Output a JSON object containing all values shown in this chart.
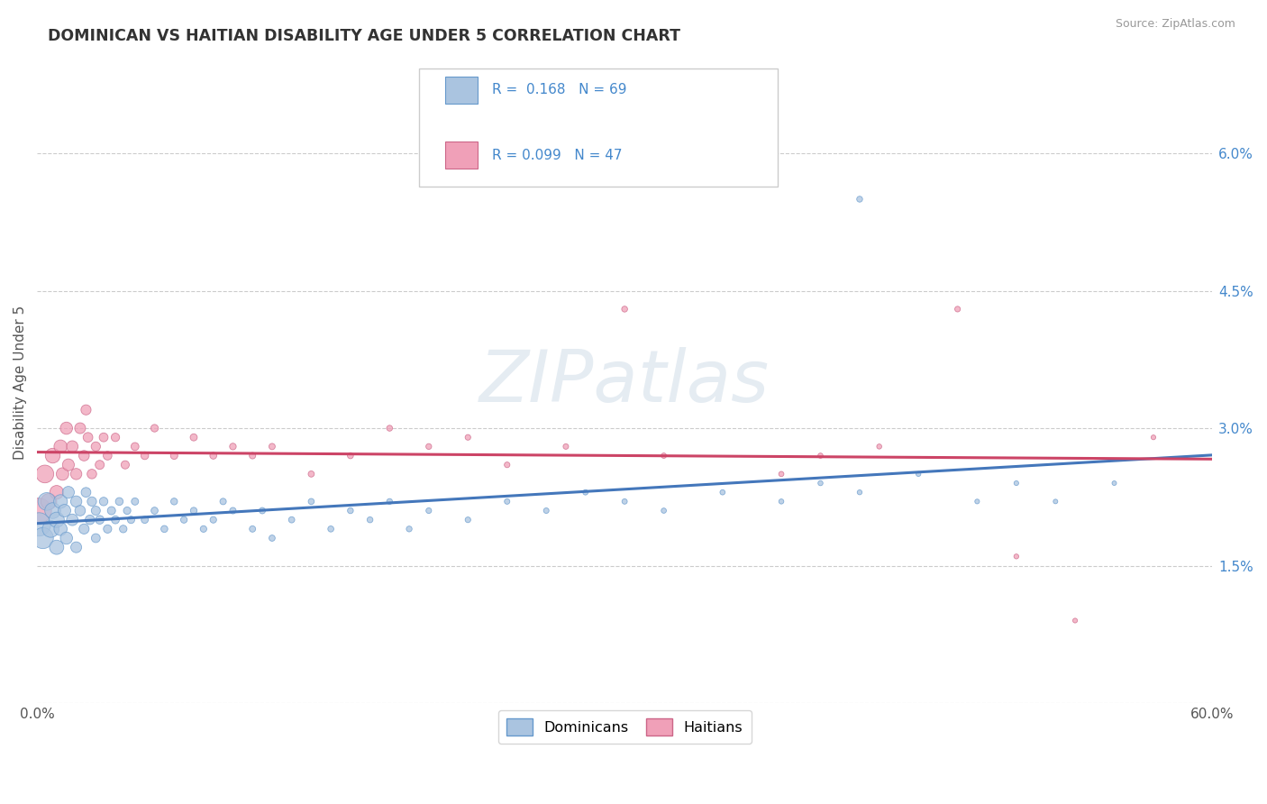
{
  "title": "DOMINICAN VS HAITIAN DISABILITY AGE UNDER 5 CORRELATION CHART",
  "source": "Source: ZipAtlas.com",
  "ylabel": "Disability Age Under 5",
  "xlim": [
    0.0,
    0.6
  ],
  "ylim": [
    0.0,
    0.07
  ],
  "xticklabels": [
    "0.0%",
    "",
    "",
    "",
    "",
    "",
    "60.0%"
  ],
  "yticks": [
    0.0,
    0.015,
    0.03,
    0.045,
    0.06
  ],
  "yticklabels": [
    "",
    "1.5%",
    "3.0%",
    "4.5%",
    "6.0%"
  ],
  "dominican_fill": "#aac4e0",
  "dominican_edge": "#6699cc",
  "haitian_fill": "#f0a0b8",
  "haitian_edge": "#cc6688",
  "dom_line_color": "#4477bb",
  "hai_line_color": "#cc4466",
  "grid_color": "#cccccc",
  "title_color": "#333333",
  "ytick_color": "#4488cc",
  "watermark_color": "#d0dde8",
  "legend_text_color": "#4488cc",
  "source_color": "#999999",
  "dom_R": "R =  0.168",
  "dom_N": "N = 69",
  "hai_R": "R = 0.099",
  "hai_N": "N = 47",
  "dom_label": "Dominicans",
  "hai_label": "Haitians",
  "dom_points": [
    [
      0.001,
      0.0195,
      350
    ],
    [
      0.003,
      0.018,
      280
    ],
    [
      0.005,
      0.022,
      200
    ],
    [
      0.007,
      0.019,
      180
    ],
    [
      0.008,
      0.021,
      160
    ],
    [
      0.01,
      0.02,
      150
    ],
    [
      0.01,
      0.017,
      130
    ],
    [
      0.012,
      0.022,
      120
    ],
    [
      0.012,
      0.019,
      110
    ],
    [
      0.014,
      0.021,
      100
    ],
    [
      0.015,
      0.018,
      95
    ],
    [
      0.016,
      0.023,
      90
    ],
    [
      0.018,
      0.02,
      85
    ],
    [
      0.02,
      0.022,
      80
    ],
    [
      0.02,
      0.017,
      75
    ],
    [
      0.022,
      0.021,
      70
    ],
    [
      0.024,
      0.019,
      65
    ],
    [
      0.025,
      0.023,
      60
    ],
    [
      0.027,
      0.02,
      58
    ],
    [
      0.028,
      0.022,
      55
    ],
    [
      0.03,
      0.021,
      52
    ],
    [
      0.03,
      0.018,
      50
    ],
    [
      0.032,
      0.02,
      48
    ],
    [
      0.034,
      0.022,
      46
    ],
    [
      0.036,
      0.019,
      44
    ],
    [
      0.038,
      0.021,
      42
    ],
    [
      0.04,
      0.02,
      40
    ],
    [
      0.042,
      0.022,
      38
    ],
    [
      0.044,
      0.019,
      36
    ],
    [
      0.046,
      0.021,
      35
    ],
    [
      0.048,
      0.02,
      34
    ],
    [
      0.05,
      0.022,
      33
    ],
    [
      0.055,
      0.02,
      32
    ],
    [
      0.06,
      0.021,
      31
    ],
    [
      0.065,
      0.019,
      30
    ],
    [
      0.07,
      0.022,
      29
    ],
    [
      0.075,
      0.02,
      28
    ],
    [
      0.08,
      0.021,
      28
    ],
    [
      0.085,
      0.019,
      27
    ],
    [
      0.09,
      0.02,
      27
    ],
    [
      0.095,
      0.022,
      26
    ],
    [
      0.1,
      0.021,
      26
    ],
    [
      0.11,
      0.019,
      25
    ],
    [
      0.115,
      0.021,
      25
    ],
    [
      0.12,
      0.018,
      24
    ],
    [
      0.13,
      0.02,
      24
    ],
    [
      0.14,
      0.022,
      23
    ],
    [
      0.15,
      0.019,
      23
    ],
    [
      0.16,
      0.021,
      22
    ],
    [
      0.17,
      0.02,
      22
    ],
    [
      0.18,
      0.022,
      21
    ],
    [
      0.19,
      0.019,
      21
    ],
    [
      0.2,
      0.021,
      20
    ],
    [
      0.22,
      0.02,
      20
    ],
    [
      0.24,
      0.022,
      19
    ],
    [
      0.26,
      0.021,
      19
    ],
    [
      0.28,
      0.023,
      18
    ],
    [
      0.3,
      0.022,
      18
    ],
    [
      0.32,
      0.021,
      17
    ],
    [
      0.35,
      0.023,
      17
    ],
    [
      0.38,
      0.022,
      16
    ],
    [
      0.4,
      0.024,
      16
    ],
    [
      0.42,
      0.023,
      15
    ],
    [
      0.45,
      0.025,
      15
    ],
    [
      0.48,
      0.022,
      14
    ],
    [
      0.5,
      0.024,
      14
    ],
    [
      0.52,
      0.022,
      13
    ],
    [
      0.55,
      0.024,
      13
    ],
    [
      0.42,
      0.055,
      22
    ]
  ],
  "hai_points": [
    [
      0.001,
      0.021,
      400
    ],
    [
      0.004,
      0.025,
      200
    ],
    [
      0.006,
      0.022,
      160
    ],
    [
      0.008,
      0.027,
      140
    ],
    [
      0.01,
      0.023,
      120
    ],
    [
      0.012,
      0.028,
      110
    ],
    [
      0.013,
      0.025,
      100
    ],
    [
      0.015,
      0.03,
      95
    ],
    [
      0.016,
      0.026,
      90
    ],
    [
      0.018,
      0.028,
      85
    ],
    [
      0.02,
      0.025,
      80
    ],
    [
      0.022,
      0.03,
      75
    ],
    [
      0.024,
      0.027,
      70
    ],
    [
      0.025,
      0.032,
      65
    ],
    [
      0.026,
      0.029,
      60
    ],
    [
      0.028,
      0.025,
      58
    ],
    [
      0.03,
      0.028,
      55
    ],
    [
      0.032,
      0.026,
      52
    ],
    [
      0.034,
      0.029,
      50
    ],
    [
      0.036,
      0.027,
      48
    ],
    [
      0.04,
      0.029,
      45
    ],
    [
      0.045,
      0.026,
      43
    ],
    [
      0.05,
      0.028,
      40
    ],
    [
      0.055,
      0.027,
      38
    ],
    [
      0.06,
      0.03,
      36
    ],
    [
      0.07,
      0.027,
      34
    ],
    [
      0.08,
      0.029,
      32
    ],
    [
      0.09,
      0.027,
      30
    ],
    [
      0.1,
      0.028,
      28
    ],
    [
      0.11,
      0.027,
      26
    ],
    [
      0.12,
      0.028,
      25
    ],
    [
      0.14,
      0.025,
      24
    ],
    [
      0.16,
      0.027,
      23
    ],
    [
      0.18,
      0.03,
      22
    ],
    [
      0.2,
      0.028,
      21
    ],
    [
      0.22,
      0.029,
      20
    ],
    [
      0.24,
      0.026,
      20
    ],
    [
      0.27,
      0.028,
      19
    ],
    [
      0.3,
      0.043,
      22
    ],
    [
      0.32,
      0.027,
      18
    ],
    [
      0.38,
      0.025,
      17
    ],
    [
      0.4,
      0.027,
      17
    ],
    [
      0.43,
      0.028,
      16
    ],
    [
      0.47,
      0.043,
      20
    ],
    [
      0.5,
      0.016,
      15
    ],
    [
      0.53,
      0.009,
      14
    ],
    [
      0.57,
      0.029,
      14
    ]
  ]
}
